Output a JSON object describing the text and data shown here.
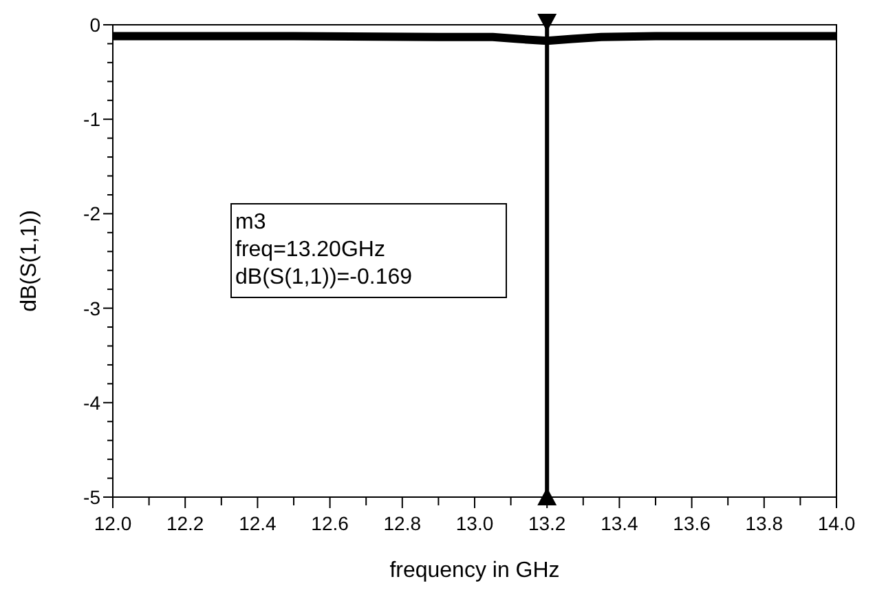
{
  "chart_data": {
    "type": "line",
    "xlabel": "frequency in GHz",
    "ylabel": "dB(S(1,1))",
    "series": [
      {
        "color": "#000000",
        "x": [
          12.0,
          12.5,
          12.9,
          13.05,
          13.12,
          13.2,
          13.27,
          13.35,
          13.5,
          13.7,
          14.0
        ],
        "values": [
          -0.12,
          -0.12,
          -0.13,
          -0.13,
          -0.15,
          -0.17,
          -0.15,
          -0.13,
          -0.12,
          -0.12,
          -0.12
        ]
      }
    ],
    "xlim": [
      12.0,
      14.0
    ],
    "xticks": [
      {
        "value": 12.0,
        "label": "12.0"
      },
      {
        "value": 12.1,
        "label": null
      },
      {
        "value": 12.2,
        "label": "12.2"
      },
      {
        "value": 12.3,
        "label": null
      },
      {
        "value": 12.4,
        "label": "12.4"
      },
      {
        "value": 12.5,
        "label": null
      },
      {
        "value": 12.6,
        "label": "12.6"
      },
      {
        "value": 12.7,
        "label": null
      },
      {
        "value": 12.8,
        "label": "12.8"
      },
      {
        "value": 12.9,
        "label": null
      },
      {
        "value": 13.0,
        "label": "13.0"
      },
      {
        "value": 13.1,
        "label": null
      },
      {
        "value": 13.2,
        "label": "13.2"
      },
      {
        "value": 13.3,
        "label": null
      },
      {
        "value": 13.4,
        "label": "13.4"
      },
      {
        "value": 13.5,
        "label": null
      },
      {
        "value": 13.6,
        "label": "13.6"
      },
      {
        "value": 13.7,
        "label": null
      },
      {
        "value": 13.8,
        "label": "13.8"
      },
      {
        "value": 13.9,
        "label": null
      },
      {
        "value": 14.0,
        "label": "14.0"
      }
    ],
    "ylim": [
      -5,
      0
    ],
    "yticks": [
      0,
      {
        "value": -0.2,
        "label": null
      },
      {
        "value": -0.4,
        "label": null
      },
      {
        "value": -0.6,
        "label": null
      },
      {
        "value": -0.8,
        "label": null
      },
      -1,
      {
        "value": -1.2,
        "label": null
      },
      {
        "value": -1.4,
        "label": null
      },
      {
        "value": -1.6,
        "label": null
      },
      {
        "value": -1.8,
        "label": null
      },
      -2,
      {
        "value": -2.2,
        "label": null
      },
      {
        "value": -2.4,
        "label": null
      },
      {
        "value": -2.6,
        "label": null
      },
      {
        "value": -2.8,
        "label": null
      },
      -3,
      {
        "value": -3.2,
        "label": null
      },
      {
        "value": -3.4,
        "label": null
      },
      {
        "value": -3.6,
        "label": null
      },
      {
        "value": -3.8,
        "label": null
      },
      -4,
      {
        "value": -4.2,
        "label": null
      },
      {
        "value": -4.4,
        "label": null
      },
      {
        "value": -4.6,
        "label": null
      },
      {
        "value": -4.8,
        "label": null
      },
      -5
    ],
    "grid": false,
    "marker": "none",
    "line_style": "solid",
    "ref_lines": [
      {
        "axis": "x",
        "value": 13.2,
        "color": "#000000"
      }
    ],
    "annotations": [
      "m3\nfreq=13.20GHz\ndB(S(1,1))=-0.169"
    ]
  }
}
